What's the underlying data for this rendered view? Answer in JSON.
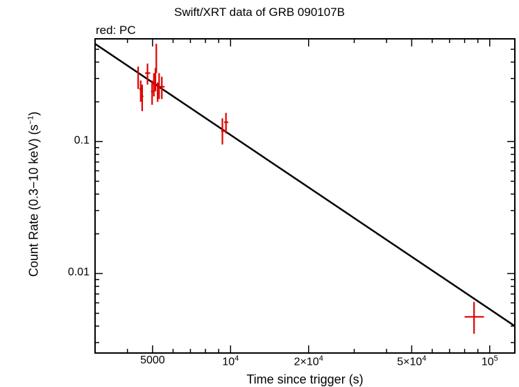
{
  "chart_data": {
    "type": "scatter",
    "title": "Swift/XRT data of GRB 090107B",
    "subtitle": "red: PC",
    "xlabel": "Time since trigger (s)",
    "ylabel_parts": [
      "Count Rate (0.3",
      "10 keV) (s",
      "1",
      ")"
    ],
    "xscale": "log",
    "yscale": "log",
    "xlim": [
      3000,
      125000
    ],
    "ylim": [
      0.0025,
      0.6
    ],
    "x_ticks": [
      {
        "value": 5000,
        "mantissa": "5000",
        "exp": ""
      },
      {
        "value": 10000,
        "mantissa": "10",
        "exp": "4"
      },
      {
        "value": 20000,
        "mantissa": "2×10",
        "exp": "4"
      },
      {
        "value": 50000,
        "mantissa": "5×10",
        "exp": "4"
      },
      {
        "value": 100000,
        "mantissa": "10",
        "exp": "5"
      }
    ],
    "y_ticks": [
      {
        "value": 0.1,
        "label": "0.1"
      },
      {
        "value": 0.01,
        "label": "0.01"
      }
    ],
    "series": [
      {
        "color": "#e00000",
        "points": [
          {
            "x": 4400,
            "y": 0.3,
            "xlo": 4380,
            "xhi": 4420,
            "ylo": 0.25,
            "yhi": 0.37
          },
          {
            "x": 4500,
            "y": 0.25,
            "xlo": 4450,
            "xhi": 4560,
            "ylo": 0.2,
            "yhi": 0.29
          },
          {
            "x": 4560,
            "y": 0.22,
            "xlo": 4510,
            "xhi": 4610,
            "ylo": 0.17,
            "yhi": 0.27
          },
          {
            "x": 4780,
            "y": 0.33,
            "xlo": 4680,
            "xhi": 4900,
            "ylo": 0.27,
            "yhi": 0.39
          },
          {
            "x": 4980,
            "y": 0.24,
            "xlo": 4930,
            "xhi": 5030,
            "ylo": 0.19,
            "yhi": 0.29
          },
          {
            "x": 5060,
            "y": 0.27,
            "xlo": 5030,
            "xhi": 5090,
            "ylo": 0.22,
            "yhi": 0.33
          },
          {
            "x": 5130,
            "y": 0.3,
            "xlo": 5100,
            "xhi": 5160,
            "ylo": 0.24,
            "yhi": 0.36
          },
          {
            "x": 5170,
            "y": 0.45,
            "xlo": 5150,
            "xhi": 5190,
            "ylo": 0.33,
            "yhi": 0.55
          },
          {
            "x": 5230,
            "y": 0.23,
            "xlo": 5200,
            "xhi": 5260,
            "ylo": 0.2,
            "yhi": 0.28
          },
          {
            "x": 5300,
            "y": 0.27,
            "xlo": 5260,
            "xhi": 5340,
            "ylo": 0.21,
            "yhi": 0.33
          },
          {
            "x": 5430,
            "y": 0.26,
            "xlo": 5340,
            "xhi": 5560,
            "ylo": 0.21,
            "yhi": 0.31
          },
          {
            "x": 9300,
            "y": 0.12,
            "xlo": 9200,
            "xhi": 9500,
            "ylo": 0.095,
            "yhi": 0.15
          },
          {
            "x": 9600,
            "y": 0.14,
            "xlo": 9450,
            "xhi": 9800,
            "ylo": 0.115,
            "yhi": 0.165
          },
          {
            "x": 87000,
            "y": 0.0047,
            "xlo": 80000,
            "xhi": 95000,
            "ylo": 0.0035,
            "yhi": 0.0061
          }
        ]
      }
    ],
    "model_line": {
      "color": "#000000",
      "x": [
        3000,
        125000
      ],
      "y": [
        0.55,
        0.004
      ]
    }
  }
}
